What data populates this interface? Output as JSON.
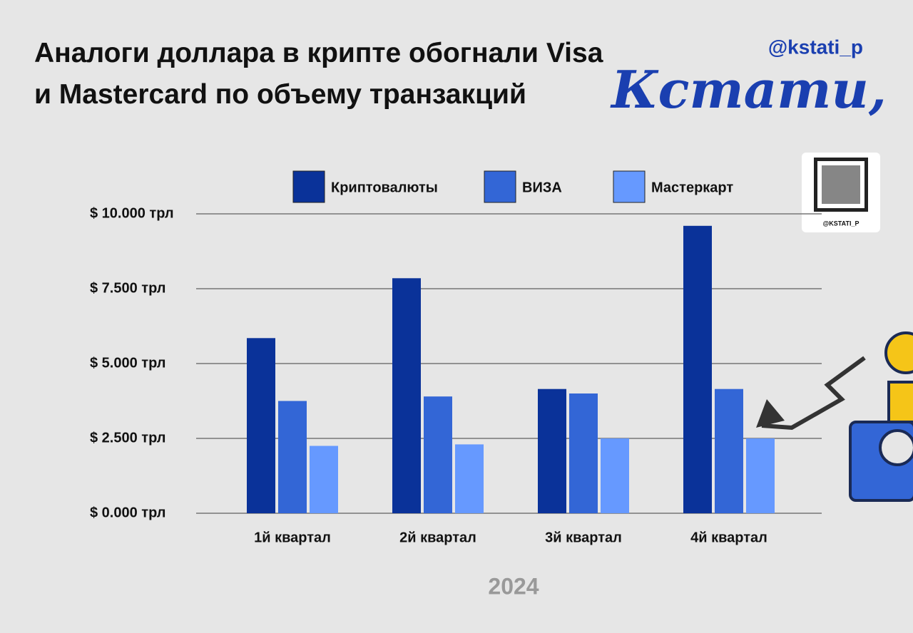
{
  "chart_data": {
    "type": "bar",
    "title": "Аналоги доллара в крипте обогнали Visa и Mastercard по объему транзакций",
    "annotations": [
      "@kstati_p",
      "Кстати,",
      "@KSTATI_P"
    ],
    "xlabel": "2024",
    "categories": [
      "1й квартал",
      "2й квартал",
      "3й квартал",
      "4й квартал"
    ],
    "series": [
      {
        "name": "Криптовалюты",
        "color": "#0a3299",
        "values": [
          5850,
          7850,
          4150,
          9600
        ]
      },
      {
        "name": "ВИЗА",
        "color": "#3366d6",
        "values": [
          3750,
          3900,
          4000,
          4150
        ]
      },
      {
        "name": "Мастеркарт",
        "color": "#6699ff",
        "values": [
          2250,
          2300,
          2500,
          2500
        ]
      }
    ],
    "ylim": [
      0,
      10000
    ],
    "yticks": [
      {
        "value": 0,
        "label": "$ 0.000 трл"
      },
      {
        "value": 2500,
        "label": "$ 2.500 трл"
      },
      {
        "value": 5000,
        "label": "$ 5.000 трл"
      },
      {
        "value": 7500,
        "label": "$ 7.500 трл"
      },
      {
        "value": 10000,
        "label": "$ 10.000 трл"
      }
    ],
    "grid": true,
    "legend": "top"
  }
}
